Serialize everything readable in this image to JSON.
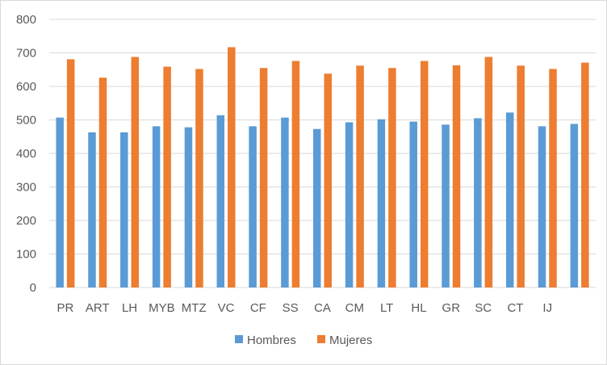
{
  "chart_data": {
    "type": "bar",
    "title": "",
    "xlabel": "",
    "ylabel": "",
    "ylim": [
      0,
      800
    ],
    "yticks": [
      0,
      100,
      200,
      300,
      400,
      500,
      600,
      700,
      800
    ],
    "grid": true,
    "legend": "bottom",
    "categories": [
      "PR",
      "ART",
      "LH",
      "MYB",
      "MTZ",
      "VC",
      "CF",
      "SS",
      "CA",
      "CM",
      "LT",
      "HL",
      "GR",
      "SC",
      "CT",
      "IJ",
      ""
    ],
    "series": [
      {
        "name": "Hombres",
        "color": "#5b9bd5",
        "values": [
          507,
          463,
          463,
          481,
          478,
          514,
          481,
          507,
          473,
          493,
          502,
          495,
          486,
          505,
          522,
          481,
          488
        ]
      },
      {
        "name": "Mujeres",
        "color": "#ed7d31",
        "values": [
          681,
          626,
          688,
          659,
          652,
          717,
          655,
          676,
          638,
          662,
          655,
          676,
          663,
          688,
          662,
          652,
          671
        ]
      }
    ]
  }
}
